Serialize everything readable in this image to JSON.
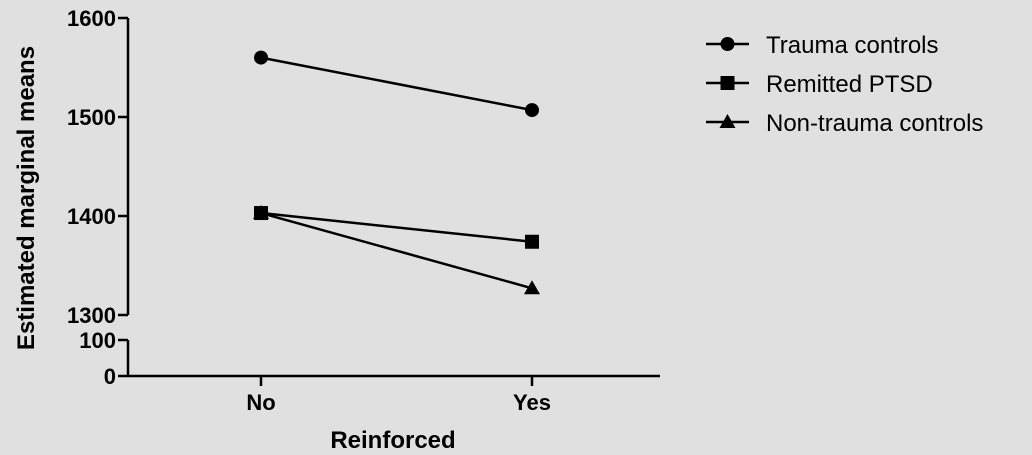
{
  "chart_data": {
    "type": "line",
    "xlabel": "Reinforced",
    "ylabel": "Estimated marginal means",
    "categories": [
      "No",
      "Yes"
    ],
    "y_axis": {
      "broken": true,
      "lower_segment": {
        "range": [
          0,
          100
        ],
        "ticks": [
          0,
          100
        ]
      },
      "upper_segment": {
        "range": [
          1300,
          1600
        ],
        "ticks": [
          1300,
          1400,
          1500,
          1600
        ]
      }
    },
    "series": [
      {
        "name": "Trauma controls",
        "marker": "circle",
        "values": [
          1560,
          1507
        ]
      },
      {
        "name": "Remitted PTSD",
        "marker": "square",
        "values": [
          1403,
          1374
        ]
      },
      {
        "name": "Non-trauma controls",
        "marker": "triangle",
        "values": [
          1403,
          1327
        ]
      }
    ],
    "legend_position": "top-right",
    "grid": false,
    "colors": {
      "line": "#000000",
      "background": "#e0e0e0"
    }
  }
}
